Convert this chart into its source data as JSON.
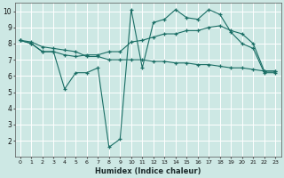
{
  "xlabel": "Humidex (Indice chaleur)",
  "xlim": [
    -0.5,
    23.5
  ],
  "ylim": [
    1.0,
    10.5
  ],
  "yticks": [
    2,
    3,
    4,
    5,
    6,
    7,
    8,
    9,
    10
  ],
  "xticks": [
    0,
    1,
    2,
    3,
    4,
    5,
    6,
    7,
    8,
    9,
    10,
    11,
    12,
    13,
    14,
    15,
    16,
    17,
    18,
    19,
    20,
    21,
    22,
    23
  ],
  "background_color": "#cde8e4",
  "grid_color": "#ffffff",
  "line_color": "#1a6e65",
  "line1_y": [
    8.2,
    8.0,
    7.5,
    7.5,
    5.2,
    6.2,
    6.2,
    6.5,
    1.6,
    2.1,
    10.1,
    6.5,
    9.3,
    9.5,
    10.1,
    9.6,
    9.5,
    10.1,
    9.8,
    8.7,
    8.0,
    7.7,
    6.2,
    6.2
  ],
  "line2_y": [
    8.2,
    8.0,
    7.5,
    7.5,
    7.3,
    7.2,
    7.3,
    7.3,
    7.5,
    7.5,
    8.1,
    8.2,
    8.4,
    8.6,
    8.6,
    8.8,
    8.8,
    9.0,
    9.1,
    8.8,
    8.6,
    8.0,
    6.3,
    6.3
  ],
  "line3_y": [
    8.2,
    8.1,
    7.8,
    7.7,
    7.6,
    7.5,
    7.2,
    7.2,
    7.0,
    7.0,
    7.0,
    7.0,
    6.9,
    6.9,
    6.8,
    6.8,
    6.7,
    6.7,
    6.6,
    6.5,
    6.5,
    6.4,
    6.3,
    6.3
  ]
}
